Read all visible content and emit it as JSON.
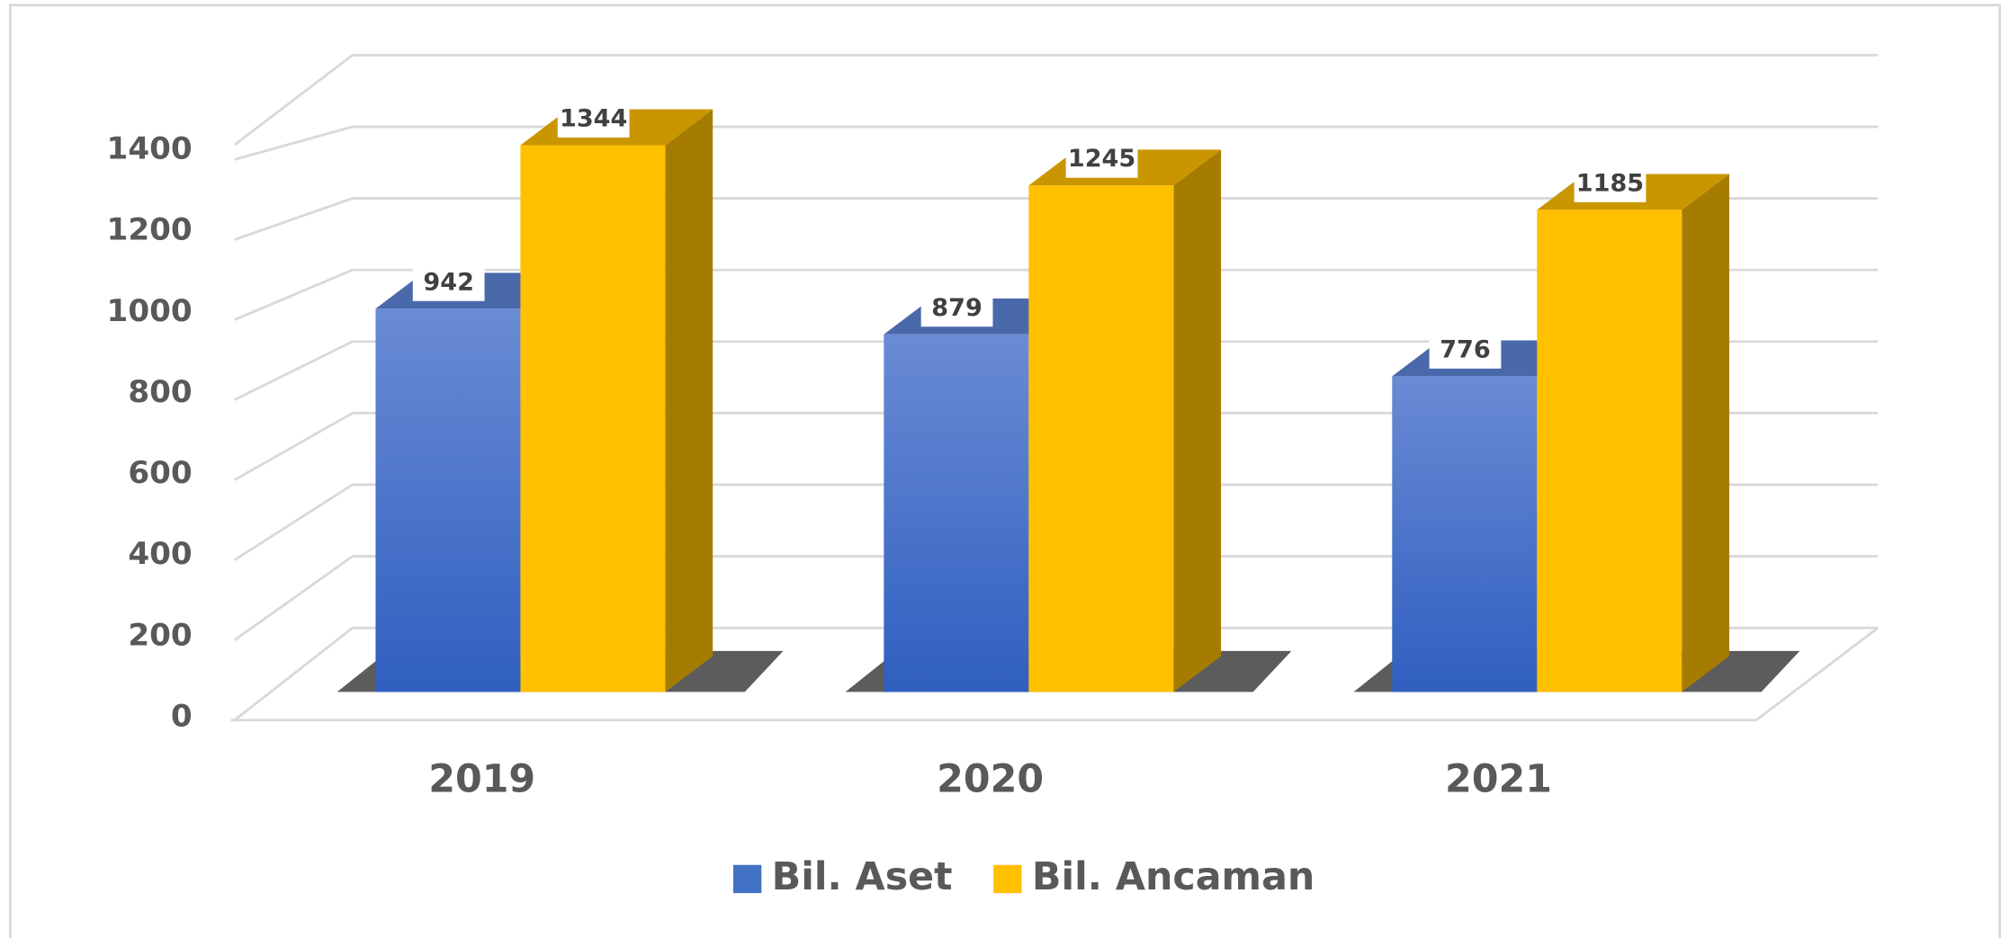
{
  "chart_data": {
    "type": "bar3d",
    "categories": [
      "2019",
      "2020",
      "2021"
    ],
    "series": [
      {
        "name": "Bil. Aset",
        "color": "#4472c4",
        "values": [
          942,
          879,
          776
        ]
      },
      {
        "name": "Bil. Ancaman",
        "color": "#ffc000",
        "values": [
          1344,
          1245,
          1185
        ]
      }
    ],
    "ylim": [
      0,
      1600
    ],
    "yticks": [
      0,
      200,
      400,
      600,
      800,
      1000,
      1200,
      1400
    ],
    "grid": true,
    "legend": "bottom"
  }
}
